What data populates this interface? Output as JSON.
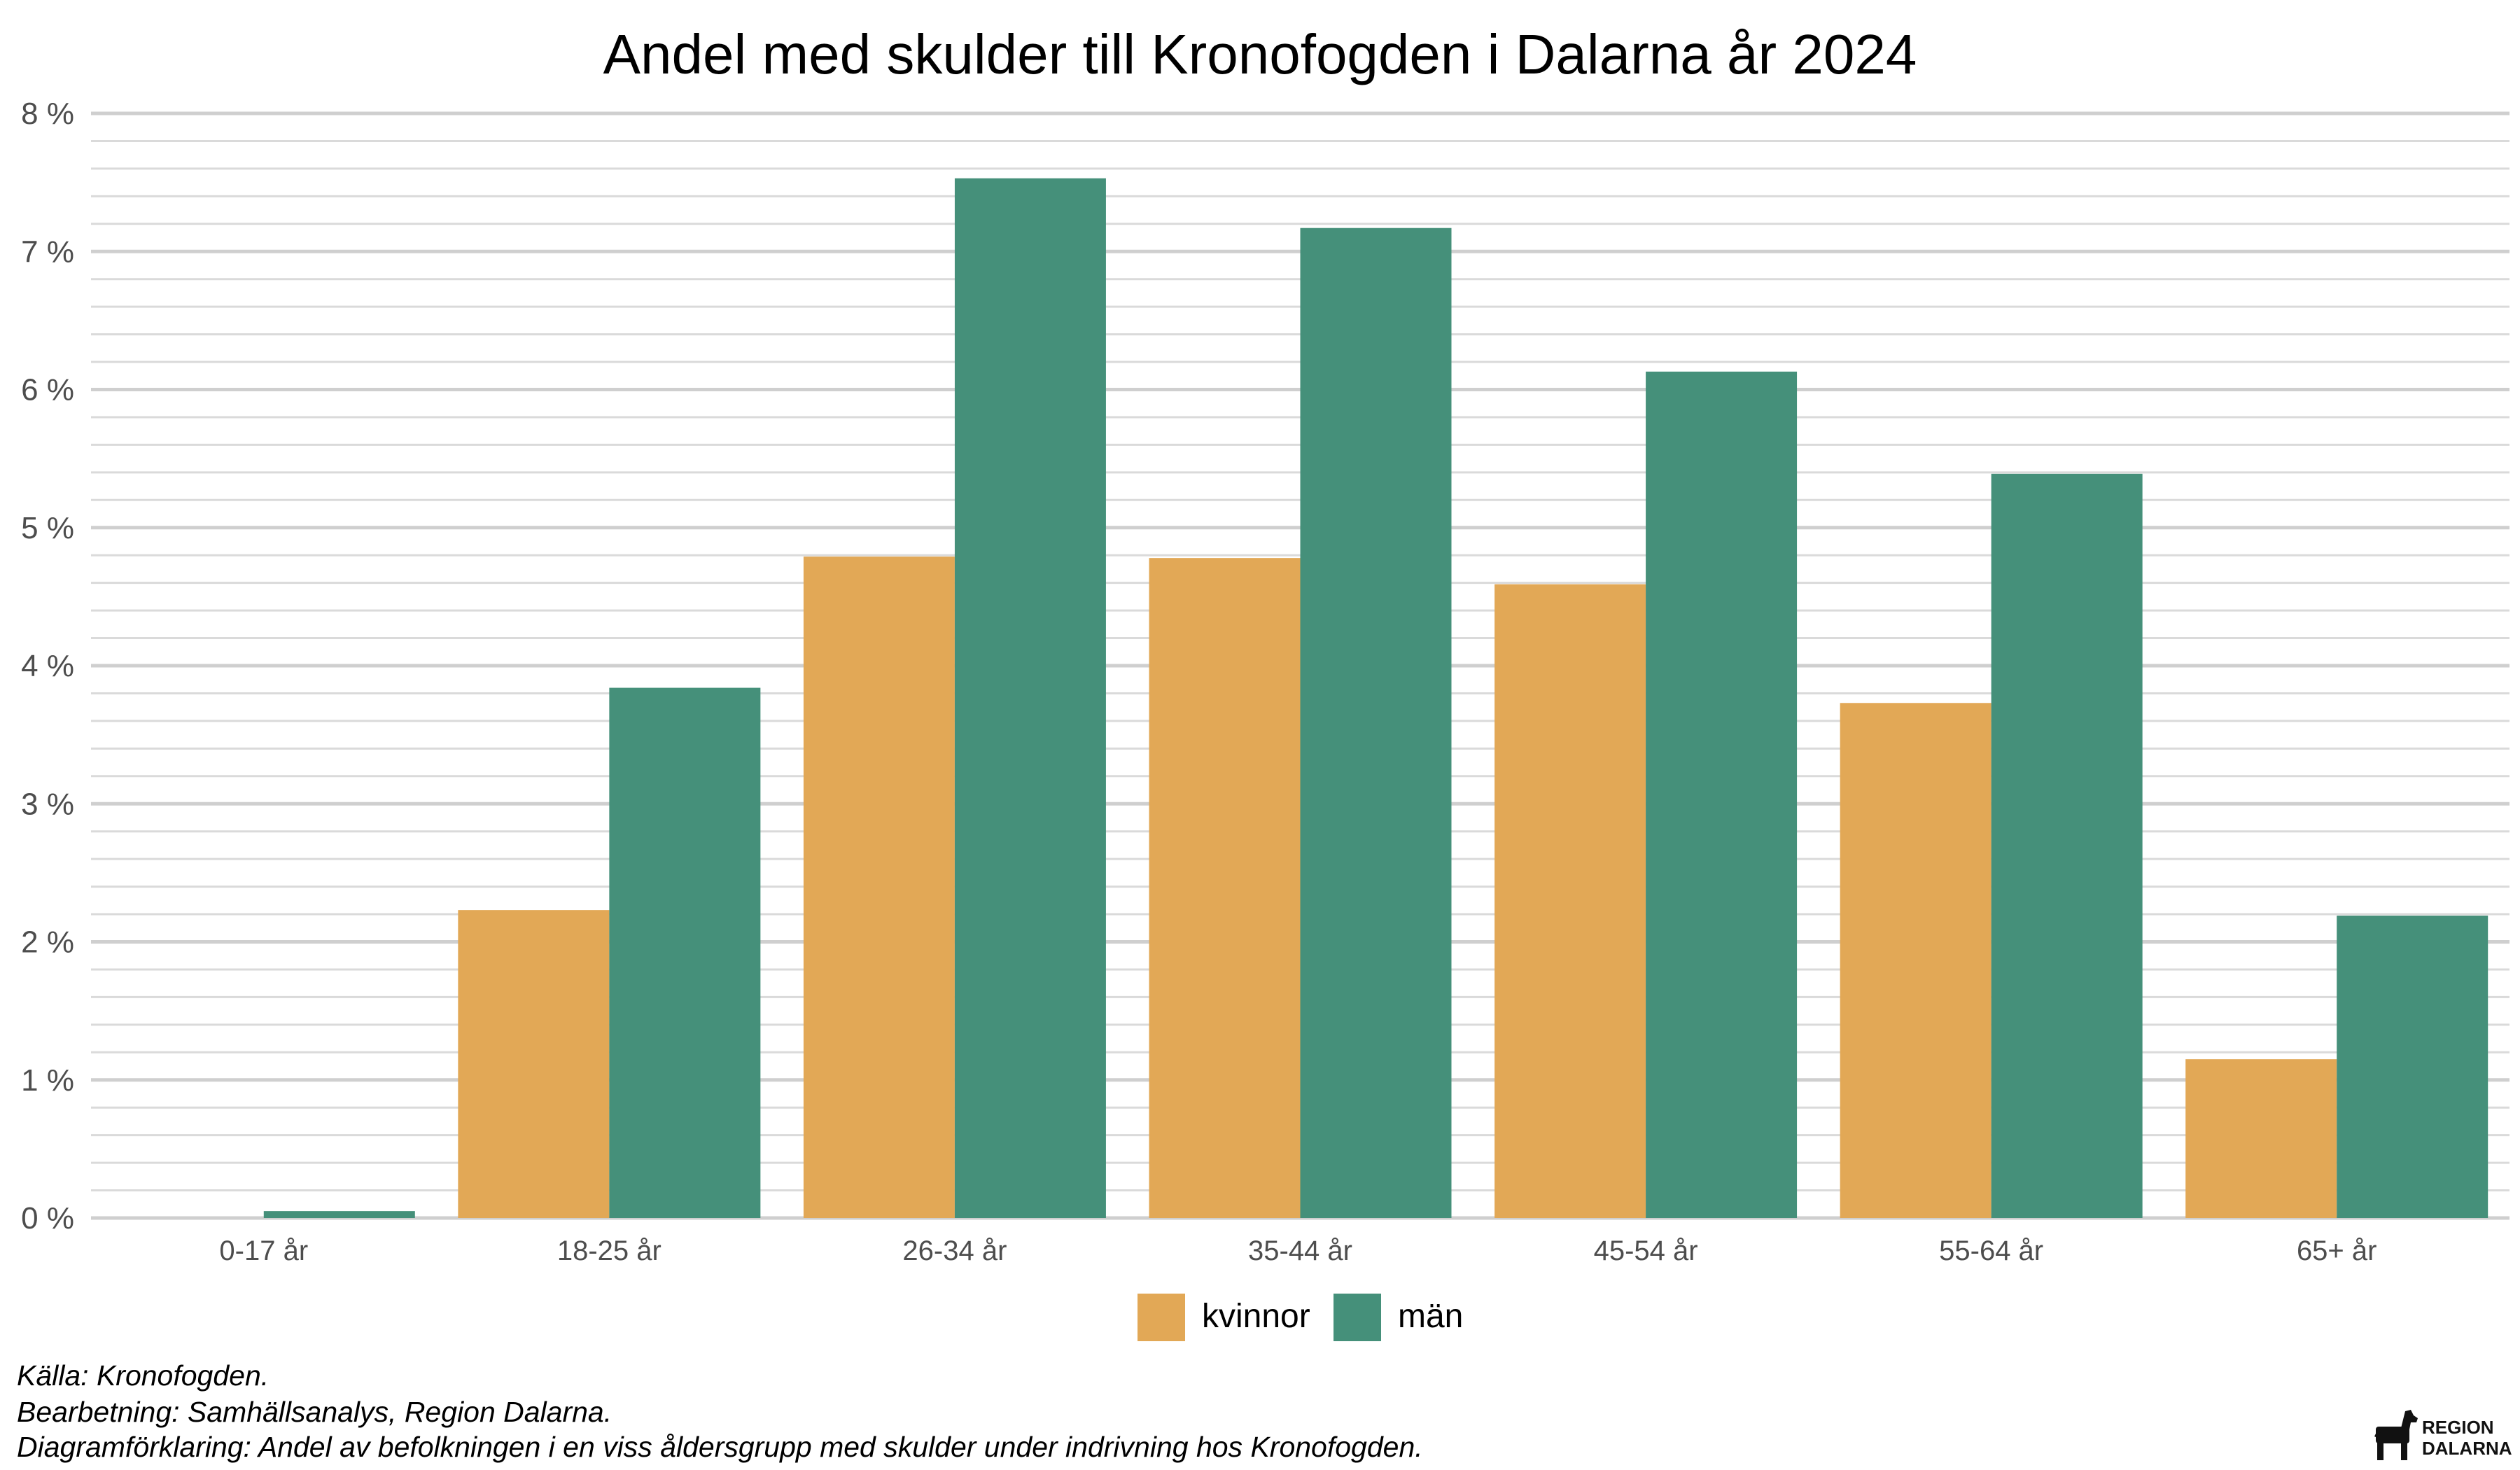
{
  "chart_data": {
    "type": "bar",
    "title": "Andel med skulder till Kronofogden i Dalarna år 2024",
    "xlabel": "",
    "ylabel": "",
    "categories": [
      "0-17 år",
      "18-25 år",
      "26-34 år",
      "35-44 år",
      "45-54 år",
      "55-64 år",
      "65+ år"
    ],
    "series": [
      {
        "name": "kvinnor",
        "color": "#E2A856",
        "values": [
          0.0,
          2.23,
          4.79,
          4.78,
          4.59,
          3.73,
          1.15
        ]
      },
      {
        "name": "män",
        "color": "#45907A",
        "values": [
          0.05,
          3.84,
          7.53,
          7.17,
          6.13,
          5.39,
          2.19
        ]
      }
    ],
    "ylim": [
      0,
      8
    ],
    "yticks": [
      0,
      1,
      2,
      3,
      4,
      5,
      6,
      7,
      8
    ],
    "ytick_labels": [
      "0 %",
      "1 %",
      "2 %",
      "3 %",
      "4 %",
      "5 %",
      "6 %",
      "7 %",
      "8 %"
    ],
    "minor_grid_step": 0.2,
    "grid": true,
    "legend_position": "bottom-center"
  },
  "captions": {
    "source": "Källa: Kronofogden.",
    "processing": "Bearbetning: Samhällsanalys, Region Dalarna.",
    "explanation": "Diagramförklaring: Andel av befolkningen i en viss åldersgrupp med skulder under indrivning hos Kronofogden."
  },
  "logo": {
    "line1": "REGION",
    "line2": "DALARNA"
  }
}
